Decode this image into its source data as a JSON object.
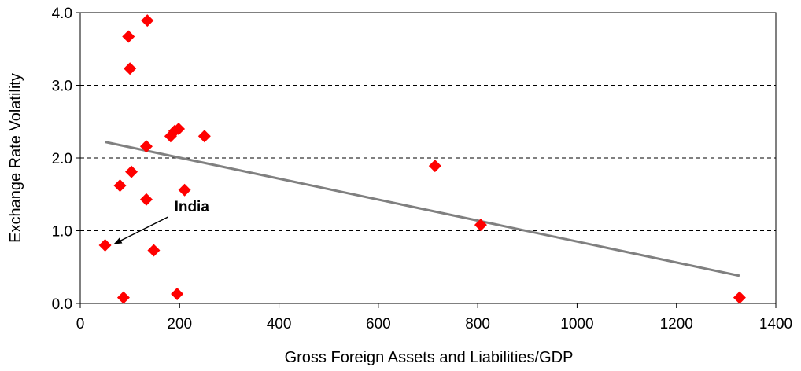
{
  "chart_data": {
    "type": "scatter",
    "title": "",
    "xlabel": "Gross Foreign Assets and Liabilities/GDP",
    "ylabel": "Exchange Rate Volatility",
    "xlim": [
      0,
      1400
    ],
    "ylim": [
      0,
      4
    ],
    "x_ticks": [
      0,
      200,
      400,
      600,
      800,
      1000,
      1200,
      1400
    ],
    "x_tick_labels": [
      "0",
      "200",
      "400",
      "600",
      "800",
      "1000",
      "1200",
      "1400"
    ],
    "y_ticks": [
      0,
      1,
      2,
      3,
      4
    ],
    "y_tick_labels": [
      "0.0",
      "1.0",
      "2.0",
      "3.0",
      "4.0"
    ],
    "grid": "horizontal dashed",
    "legend": "none",
    "marker_color": "#ff0000",
    "trend_color": "#808080",
    "series": [
      {
        "marker": "diamond",
        "points": [
          {
            "x": 135,
            "y": 3.89
          },
          {
            "x": 97,
            "y": 3.67
          },
          {
            "x": 100,
            "y": 3.23
          },
          {
            "x": 198,
            "y": 2.4
          },
          {
            "x": 190,
            "y": 2.37
          },
          {
            "x": 182,
            "y": 2.3
          },
          {
            "x": 250,
            "y": 2.3
          },
          {
            "x": 133,
            "y": 2.16
          },
          {
            "x": 103,
            "y": 1.81
          },
          {
            "x": 80,
            "y": 1.62
          },
          {
            "x": 210,
            "y": 1.56
          },
          {
            "x": 133,
            "y": 1.43
          },
          {
            "x": 148,
            "y": 0.73
          },
          {
            "x": 50,
            "y": 0.8
          },
          {
            "x": 87,
            "y": 0.08
          },
          {
            "x": 195,
            "y": 0.13
          },
          {
            "x": 714,
            "y": 1.89
          },
          {
            "x": 806,
            "y": 1.08
          },
          {
            "x": 1327,
            "y": 0.08
          }
        ]
      }
    ],
    "trendline": {
      "x": [
        50,
        1327
      ],
      "y": [
        2.22,
        0.38
      ]
    },
    "annotations": [
      {
        "text": "India",
        "x": 50,
        "y": 0.8
      }
    ]
  }
}
